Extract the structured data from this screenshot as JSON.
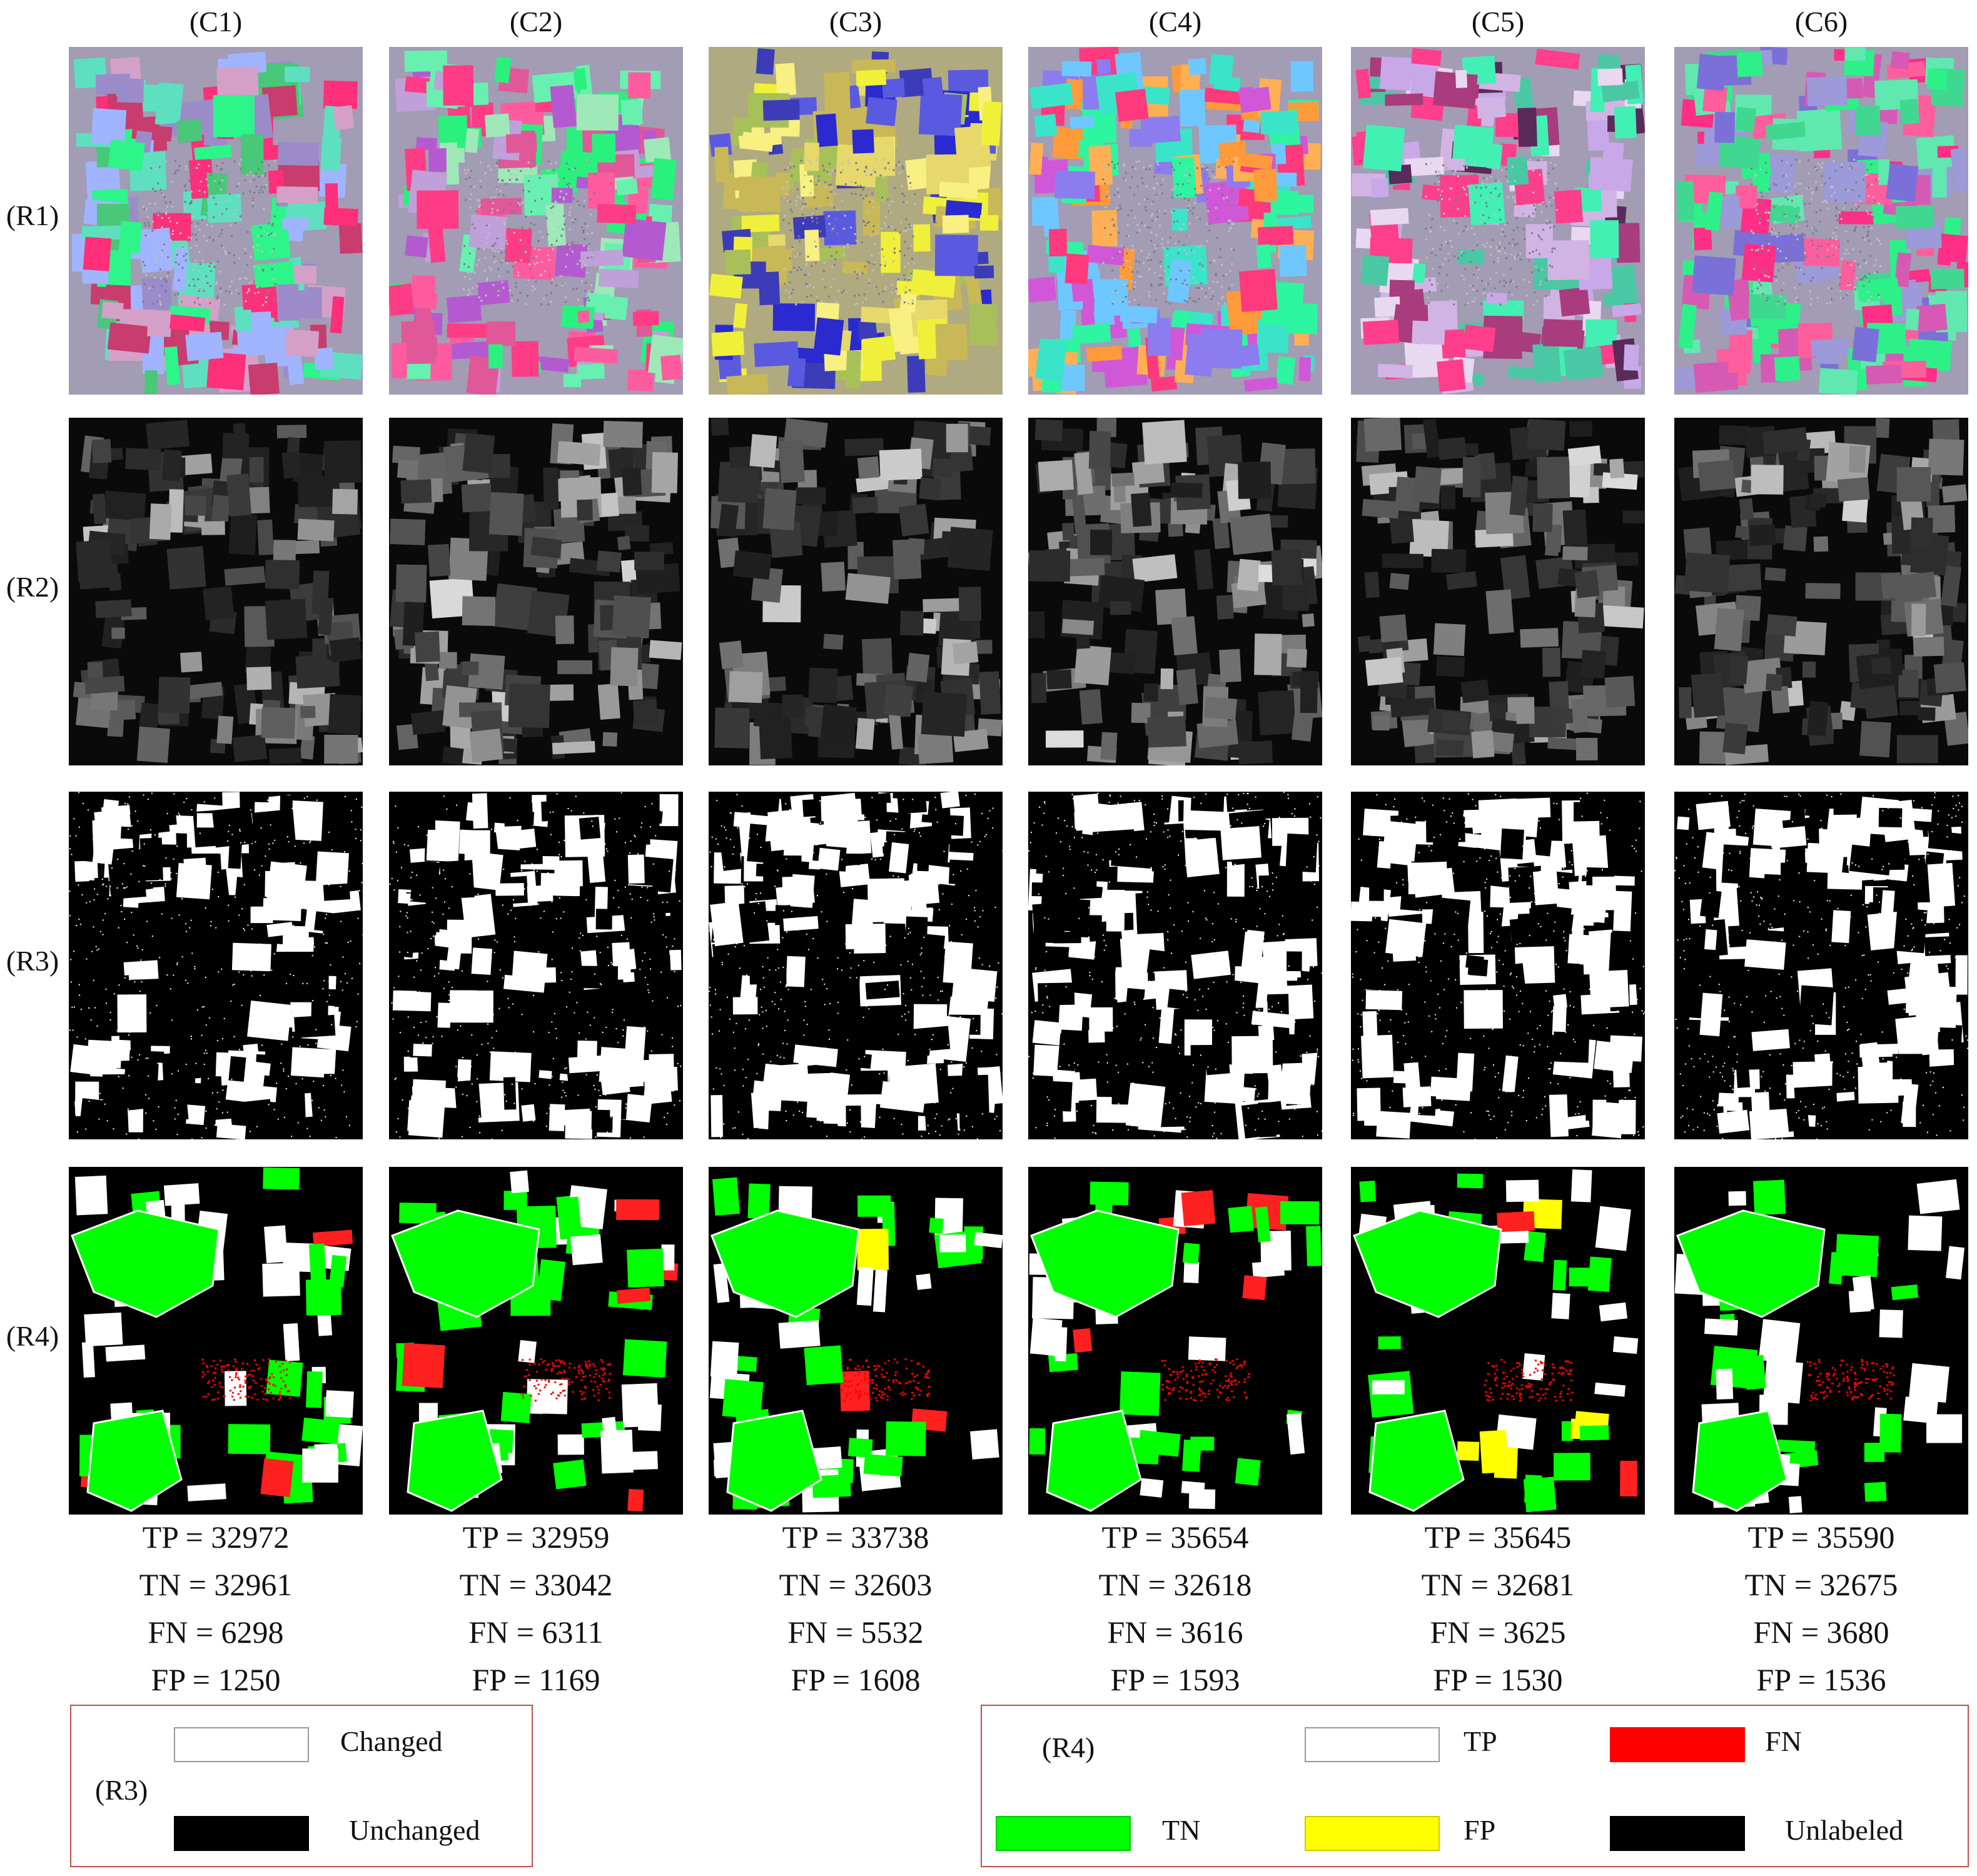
{
  "columns": [
    "(C1)",
    "(C2)",
    "(C3)",
    "(C4)",
    "(C5)",
    "(C6)"
  ],
  "rows": [
    "(R1)",
    "(R2)",
    "(R3)",
    "(R4)"
  ],
  "panels": {
    "r1": "pseudo-color composite",
    "r2": "grayscale difference image",
    "r3": "binary change map",
    "r4": "accuracy map"
  },
  "stats": [
    {
      "tp": "TP = 32972",
      "tn": "TN = 32961",
      "fn": "FN = 6298",
      "fp": "FP = 1250"
    },
    {
      "tp": "TP = 32959",
      "tn": "TN = 33042",
      "fn": "FN = 6311",
      "fp": "FP = 1169"
    },
    {
      "tp": "TP = 33738",
      "tn": "TN = 32603",
      "fn": "FN = 5532",
      "fp": "FP = 1608"
    },
    {
      "tp": "TP = 35654",
      "tn": "TN = 32618",
      "fn": "FN = 3616",
      "fp": "FP = 1593"
    },
    {
      "tp": "TP = 35645",
      "tn": "TN = 32681",
      "fn": "FN = 3625",
      "fp": "FP = 1530"
    },
    {
      "tp": "TP = 35590",
      "tn": "TN = 32675",
      "fn": "FN = 3680",
      "fp": "FP = 1536"
    }
  ],
  "legend_r3": {
    "title": "(R3)",
    "changed": "Changed",
    "unchanged": "Unchanged"
  },
  "legend_r4": {
    "title": "(R4)",
    "tp": "TP",
    "fn": "FN",
    "tn": "TN",
    "fp": "FP",
    "unlabeled": "Unlabeled"
  },
  "colors": {
    "tp": "#ffffff",
    "fn": "#ff0000",
    "tn": "#00ff00",
    "fp": "#ffff00",
    "unlabeled": "#000000",
    "changed": "#ffffff",
    "unchanged": "#000000",
    "legend_border": "#c0504d"
  }
}
